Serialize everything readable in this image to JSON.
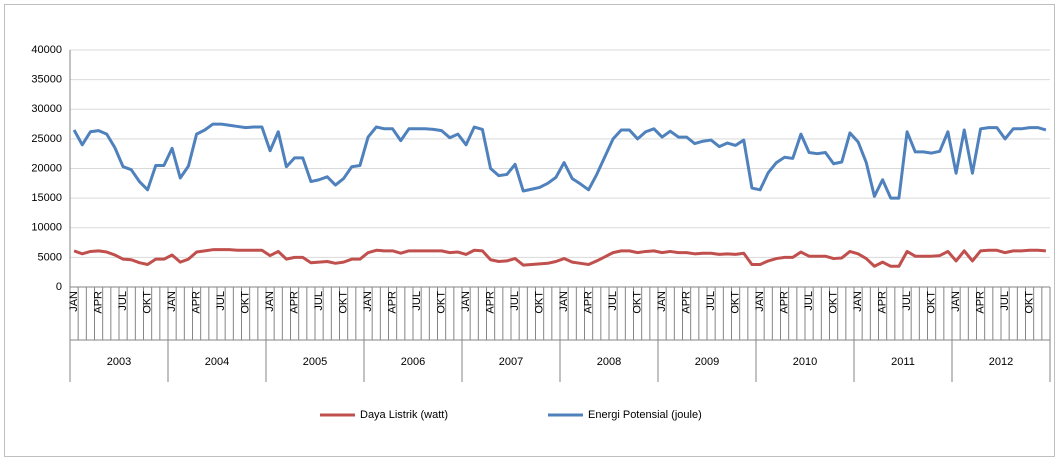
{
  "chart_data": {
    "type": "line",
    "categories": [
      "JAN",
      null,
      null,
      "APR",
      null,
      null,
      "JUL",
      null,
      null,
      "OKT",
      null,
      null,
      "JAN",
      null,
      null,
      "APR",
      null,
      null,
      "JUL",
      null,
      null,
      "OKT",
      null,
      null,
      "JAN",
      null,
      null,
      "APR",
      null,
      null,
      "JUL",
      null,
      null,
      "OKT",
      null,
      null,
      "JAN",
      null,
      null,
      "APR",
      null,
      null,
      "JUL",
      null,
      null,
      "OKT",
      null,
      null,
      "JAN",
      null,
      null,
      "APR",
      null,
      null,
      "JUL",
      null,
      null,
      "OKT",
      null,
      null,
      "JAN",
      null,
      null,
      "APR",
      null,
      null,
      "JUL",
      null,
      null,
      "OKT",
      null,
      null,
      "JAN",
      null,
      null,
      "APR",
      null,
      null,
      "JUL",
      null,
      null,
      "OKT",
      null,
      null,
      "JAN",
      null,
      null,
      "APR",
      null,
      null,
      "JUL",
      null,
      null,
      "OKT",
      null,
      null,
      "JAN",
      null,
      null,
      "APR",
      null,
      null,
      "JUL",
      null,
      null,
      "OKT",
      null,
      null,
      "JAN",
      null,
      null,
      "APR",
      null,
      null,
      "JUL",
      null,
      null,
      "OKT",
      null,
      null
    ],
    "years": [
      "2003",
      "2004",
      "2005",
      "2006",
      "2007",
      "2008",
      "2009",
      "2010",
      "2011",
      "2012"
    ],
    "series": [
      {
        "name": "Daya Listrik (watt)",
        "color": "#c0504d",
        "values": [
          6100,
          5600,
          6000,
          6100,
          5900,
          5400,
          4700,
          4600,
          4100,
          3800,
          4700,
          4700,
          5400,
          4200,
          4700,
          5900,
          6100,
          6300,
          6300,
          6300,
          6200,
          6200,
          6200,
          6200,
          5300,
          6000,
          4700,
          5000,
          5000,
          4100,
          4200,
          4300,
          4000,
          4200,
          4700,
          4700,
          5800,
          6200,
          6100,
          6100,
          5700,
          6100,
          6100,
          6100,
          6100,
          6100,
          5800,
          5900,
          5500,
          6200,
          6100,
          4600,
          4300,
          4400,
          4800,
          3700,
          3800,
          3900,
          4000,
          4300,
          4800,
          4200,
          4000,
          3800,
          4400,
          5100,
          5800,
          6100,
          6100,
          5800,
          6000,
          6100,
          5800,
          6000,
          5800,
          5800,
          5600,
          5700,
          5700,
          5500,
          5600,
          5500,
          5700,
          3800,
          3800,
          4400,
          4800,
          5000,
          5000,
          5900,
          5200,
          5200,
          5200,
          4800,
          4900,
          6000,
          5600,
          4800,
          3500,
          4200,
          3500,
          3500,
          6000,
          5200,
          5200,
          5200,
          5300,
          6000,
          4400,
          6100,
          4400,
          6100,
          6200,
          6200,
          5800,
          6100,
          6100,
          6200,
          6200,
          6100
        ]
      },
      {
        "name": "Energi Potensial (joule)",
        "color": "#4f81bd",
        "values": [
          26500,
          24000,
          26200,
          26400,
          25800,
          23500,
          20300,
          19800,
          17800,
          16400,
          20500,
          20500,
          23400,
          18400,
          20400,
          25800,
          26500,
          27500,
          27500,
          27300,
          27100,
          26900,
          27000,
          27000,
          23000,
          26200,
          20300,
          21800,
          21800,
          17800,
          18100,
          18600,
          17200,
          18300,
          20300,
          20500,
          25300,
          27000,
          26700,
          26700,
          24700,
          26700,
          26700,
          26700,
          26600,
          26400,
          25200,
          25800,
          24000,
          27000,
          26600,
          20000,
          18800,
          19000,
          20700,
          16200,
          16500,
          16800,
          17500,
          18500,
          21000,
          18300,
          17400,
          16400,
          19000,
          22000,
          25000,
          26500,
          26500,
          25000,
          26200,
          26700,
          25300,
          26300,
          25300,
          25300,
          24200,
          24600,
          24800,
          23700,
          24300,
          23900,
          24800,
          16700,
          16400,
          19300,
          21000,
          21900,
          21700,
          25800,
          22700,
          22500,
          22700,
          20800,
          21100,
          26000,
          24500,
          21000,
          15300,
          18100,
          15000,
          15000,
          26200,
          22800,
          22800,
          22600,
          22900,
          26200,
          19200,
          26500,
          19200,
          26700,
          26900,
          26900,
          25000,
          26700,
          26700,
          26900,
          26900,
          26500
        ]
      }
    ],
    "ylim": [
      0,
      40000
    ],
    "yticks": [
      0,
      5000,
      10000,
      15000,
      20000,
      25000,
      30000,
      35000,
      40000
    ],
    "grid": true,
    "legend": "bottom"
  }
}
